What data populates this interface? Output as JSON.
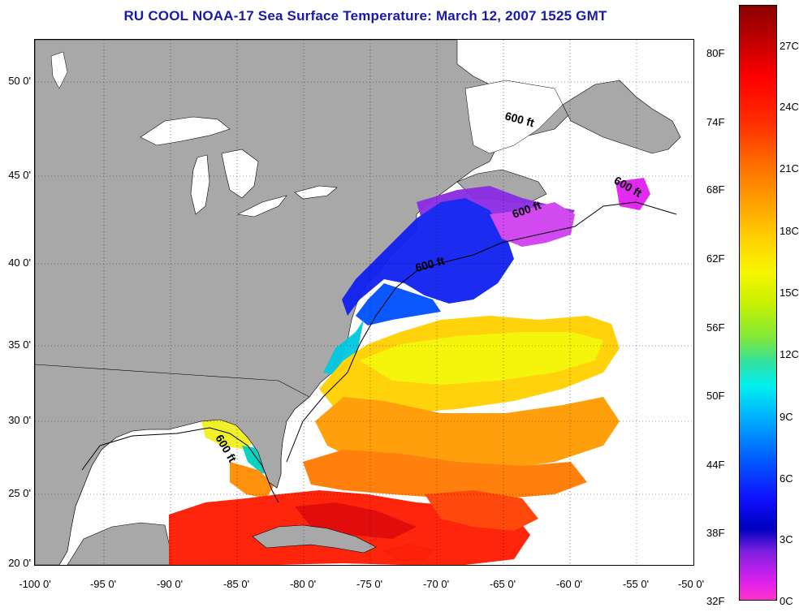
{
  "title": "RU COOL  NOAA-17  Sea Surface Temperature:  March 12, 2007 1525 GMT",
  "map": {
    "lat_labels": [
      "50 0'",
      "45 0'",
      "40 0'",
      "35 0'",
      "30 0'",
      "25 0'",
      "20 0'"
    ],
    "lon_labels": [
      "-100 0'",
      "-95 0'",
      "-90 0'",
      "-85 0'",
      "-80 0'",
      "-75 0'",
      "-70 0'",
      "-65 0'",
      "-60 0'",
      "-55 0'",
      "-50 0'"
    ],
    "contour_labels": [
      "600 ft",
      "600 ft",
      "600 ft",
      "600 ft",
      "600 ft"
    ],
    "land_color": "#a8a8a8",
    "lake_color": "#ffffff"
  },
  "colorbar": {
    "fahrenheit": [
      "80F",
      "74F",
      "68F",
      "62F",
      "56F",
      "50F",
      "44F",
      "38F",
      "32F"
    ],
    "celsius": [
      "27C",
      "24C",
      "21C",
      "18C",
      "15C",
      "12C",
      "9C",
      "6C",
      "3C",
      "0C"
    ],
    "colors": [
      "#8b0000",
      "#ff0000",
      "#ff9e00",
      "#f5f500",
      "#32e0a0",
      "#00f0f0",
      "#0060ff",
      "#0000c0",
      "#8020e0",
      "#ff33cc"
    ]
  }
}
